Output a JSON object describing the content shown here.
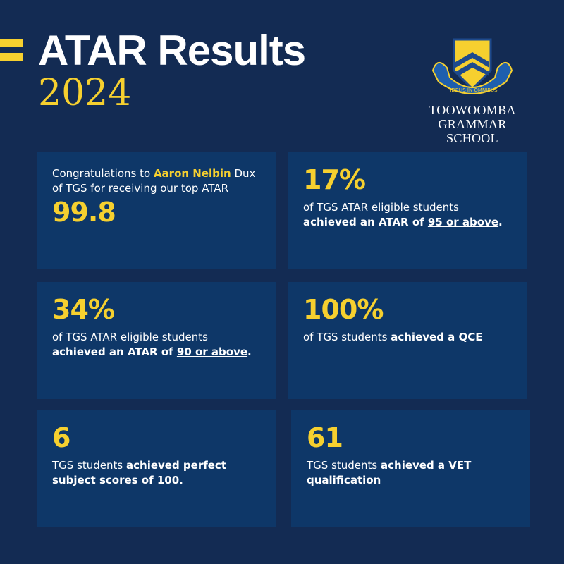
{
  "header": {
    "title": "ATAR Results",
    "year": "2024"
  },
  "logo": {
    "motto": "FIDELIS IN OMNIBUS",
    "school_line1": "TOOWOOMBA",
    "school_line2": "GRAMMAR SCHOOL"
  },
  "cards": [
    {
      "intro": "Congratulations to ",
      "name": "Aaron Nelbin",
      "rest": "Dux of TGS for receiving our top ATAR",
      "value": "99.8"
    },
    {
      "value": "17%",
      "text": "of TGS ATAR eligible students ",
      "bold": "achieved an ATAR of ",
      "link": "95 or above",
      "end": "."
    },
    {
      "value": "34%",
      "text": "of TGS ATAR eligible students ",
      "bold": "achieved an ATAR of ",
      "link": "90 or above",
      "end": "."
    },
    {
      "value": "100%",
      "text": "of TGS students ",
      "bold": "achieved a QCE"
    },
    {
      "value": "6",
      "text": "TGS students ",
      "bold": "achieved perfect subject scores of 100."
    },
    {
      "value": "61",
      "text": "TGS students ",
      "bold": "achieved a VET qualification"
    }
  ]
}
